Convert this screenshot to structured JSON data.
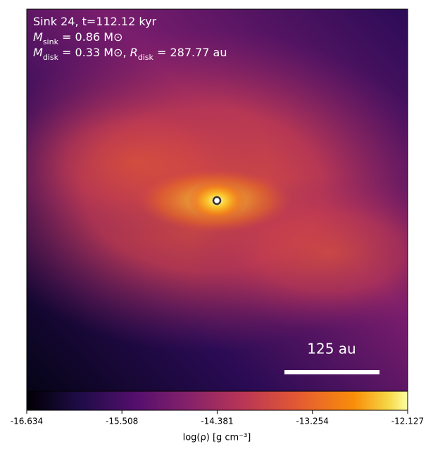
{
  "chart_data": {
    "type": "density-map",
    "annotation_lines": [
      {
        "text": "Sink 24, t=112.12 kyr"
      },
      {
        "symbol": "M",
        "subscript": "sink",
        "text": " = 0.86 M⊙"
      },
      {
        "symbol": "M",
        "subscript": "disk",
        "text": " = 0.33 M⊙, ",
        "symbol2": "R",
        "subscript2": "disk",
        "text2": " = 287.77 au"
      }
    ],
    "scale_bar_label": "125 au",
    "colorbar": {
      "label": "log(ρ) [g cm⁻³]",
      "clim": [
        -16.634,
        -12.127
      ],
      "ticks": [
        -16.634,
        -15.508,
        -14.381,
        -13.254,
        -12.127
      ],
      "colormap": "inferno"
    }
  }
}
